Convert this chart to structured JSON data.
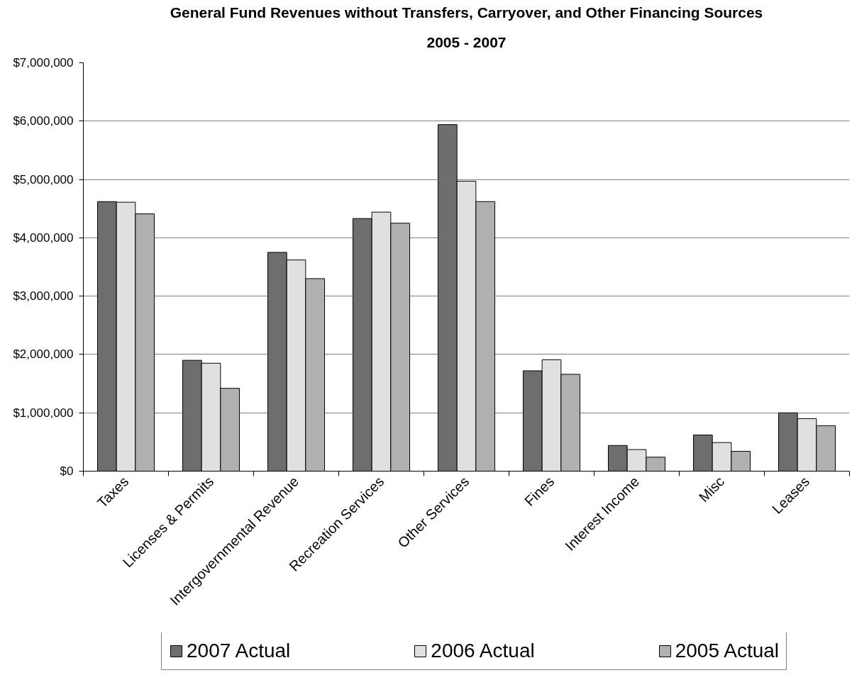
{
  "chart_data": {
    "type": "bar",
    "title": "General Fund Revenues without Transfers, Carryover, and Other Financing Sources",
    "subtitle": "2005 - 2007",
    "categories": [
      "Taxes",
      "Licenses & Permits",
      "Intergovernmental Revenue",
      "Recreation Services",
      "Other Services",
      "Fines",
      "Interest Income",
      "Misc",
      "Leases"
    ],
    "series": [
      {
        "name": "2007 Actual",
        "color": "#6e6e6e",
        "values": [
          4620000,
          1900000,
          3750000,
          4330000,
          5940000,
          1720000,
          440000,
          620000,
          1000000
        ]
      },
      {
        "name": "2006 Actual",
        "color": "#e0e0e0",
        "values": [
          4610000,
          1850000,
          3620000,
          4440000,
          4970000,
          1910000,
          370000,
          490000,
          900000
        ]
      },
      {
        "name": "2005 Actual",
        "color": "#b0b0b0",
        "values": [
          4410000,
          1420000,
          3300000,
          4250000,
          4620000,
          1660000,
          240000,
          340000,
          780000
        ]
      }
    ],
    "ylim": [
      0,
      7000000
    ],
    "yticks": [
      {
        "value": 0,
        "label": "$0"
      },
      {
        "value": 1000000,
        "label": "$1,000,000"
      },
      {
        "value": 2000000,
        "label": "$2,000,000"
      },
      {
        "value": 3000000,
        "label": "$3,000,000"
      },
      {
        "value": 4000000,
        "label": "$4,000,000"
      },
      {
        "value": 5000000,
        "label": "$5,000,000"
      },
      {
        "value": 6000000,
        "label": "$6,000,000"
      },
      {
        "value": 7000000,
        "label": "$7,000,000"
      }
    ],
    "grid": "y",
    "legend": "bottom"
  }
}
